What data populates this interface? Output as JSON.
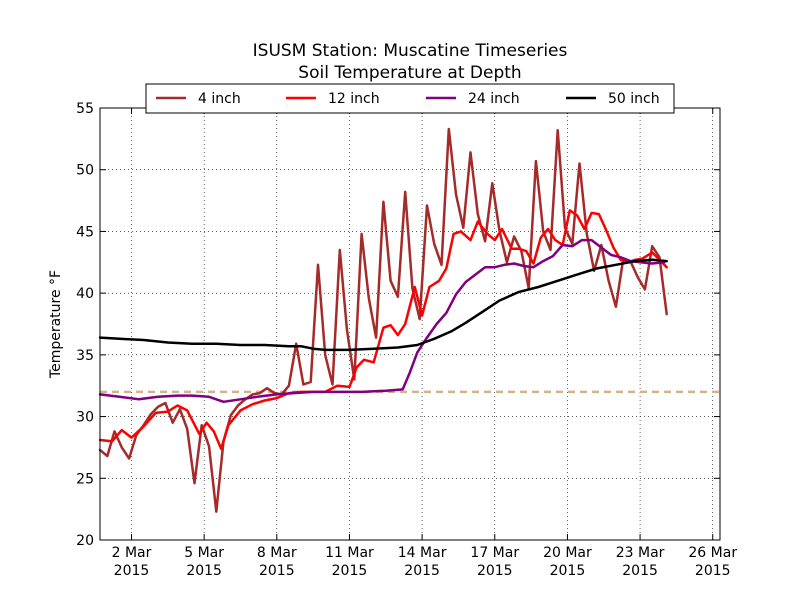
{
  "chart_data": {
    "type": "line",
    "title": "ISUSM Station: Muscatine Timeseries",
    "subtitle": "Soil Temperature at Depth",
    "xlabel": "",
    "ylabel": "Temperature °F",
    "ylim": [
      20,
      55
    ],
    "xlim": [
      0.7,
      26.3
    ],
    "grid": true,
    "legend_position": "top",
    "x_units": "day of March 2015",
    "yticks": [
      "20",
      "25",
      "30",
      "35",
      "40",
      "45",
      "50",
      "55"
    ],
    "xticks": [
      {
        "line1": "2 Mar",
        "line2": "2015",
        "day": 2
      },
      {
        "line1": "5 Mar",
        "line2": "2015",
        "day": 5
      },
      {
        "line1": "8 Mar",
        "line2": "2015",
        "day": 8
      },
      {
        "line1": "11 Mar",
        "line2": "2015",
        "day": 11
      },
      {
        "line1": "14 Mar",
        "line2": "2015",
        "day": 14
      },
      {
        "line1": "17 Mar",
        "line2": "2015",
        "day": 17
      },
      {
        "line1": "20 Mar",
        "line2": "2015",
        "day": 20
      },
      {
        "line1": "23 Mar",
        "line2": "2015",
        "day": 23
      },
      {
        "line1": "26 Mar",
        "line2": "2015",
        "day": 26
      }
    ],
    "reference_line": {
      "y": 32,
      "color": "#d2b48c",
      "style": "dashed"
    },
    "series": [
      {
        "name": "4 inch",
        "color": "#a52a2a",
        "points": [
          [
            0.7,
            27.3
          ],
          [
            1.0,
            26.8
          ],
          [
            1.3,
            28.8
          ],
          [
            1.6,
            27.5
          ],
          [
            1.9,
            26.6
          ],
          [
            2.2,
            28.5
          ],
          [
            2.5,
            29.3
          ],
          [
            2.8,
            30.2
          ],
          [
            3.1,
            30.8
          ],
          [
            3.4,
            31.1
          ],
          [
            3.7,
            29.5
          ],
          [
            4.0,
            30.6
          ],
          [
            4.3,
            29.0
          ],
          [
            4.6,
            24.6
          ],
          [
            4.9,
            29.3
          ],
          [
            5.2,
            27.6
          ],
          [
            5.5,
            22.3
          ],
          [
            5.8,
            28.0
          ],
          [
            6.1,
            30.1
          ],
          [
            6.4,
            30.9
          ],
          [
            6.7,
            31.4
          ],
          [
            7.0,
            31.8
          ],
          [
            7.3,
            31.9
          ],
          [
            7.6,
            32.3
          ],
          [
            7.9,
            31.9
          ],
          [
            8.2,
            31.8
          ],
          [
            8.5,
            32.5
          ],
          [
            8.8,
            35.9
          ],
          [
            9.1,
            32.6
          ],
          [
            9.4,
            32.8
          ],
          [
            9.7,
            42.3
          ],
          [
            10.0,
            35.0
          ],
          [
            10.3,
            32.6
          ],
          [
            10.6,
            43.5
          ],
          [
            10.9,
            37.0
          ],
          [
            11.2,
            33.0
          ],
          [
            11.5,
            44.8
          ],
          [
            11.8,
            39.6
          ],
          [
            12.1,
            36.4
          ],
          [
            12.4,
            47.4
          ],
          [
            12.7,
            41.0
          ],
          [
            13.0,
            39.7
          ],
          [
            13.3,
            48.2
          ],
          [
            13.6,
            40.4
          ],
          [
            13.9,
            37.9
          ],
          [
            14.2,
            47.1
          ],
          [
            14.5,
            44.0
          ],
          [
            14.8,
            42.3
          ],
          [
            15.1,
            53.3
          ],
          [
            15.4,
            48.0
          ],
          [
            15.7,
            45.3
          ],
          [
            16.0,
            51.4
          ],
          [
            16.3,
            46.4
          ],
          [
            16.6,
            44.2
          ],
          [
            16.9,
            48.9
          ],
          [
            17.2,
            45.0
          ],
          [
            17.5,
            42.5
          ],
          [
            17.8,
            44.6
          ],
          [
            18.1,
            43.4
          ],
          [
            18.4,
            40.4
          ],
          [
            18.7,
            50.7
          ],
          [
            19.0,
            45.0
          ],
          [
            19.3,
            43.5
          ],
          [
            19.6,
            53.2
          ],
          [
            19.9,
            45.3
          ],
          [
            20.2,
            44.0
          ],
          [
            20.5,
            50.5
          ],
          [
            20.8,
            44.8
          ],
          [
            21.1,
            41.8
          ],
          [
            21.4,
            43.9
          ],
          [
            21.7,
            41.0
          ],
          [
            22.0,
            38.9
          ],
          [
            22.3,
            42.7
          ],
          [
            22.6,
            42.6
          ],
          [
            22.9,
            41.3
          ],
          [
            23.2,
            40.3
          ],
          [
            23.5,
            43.8
          ],
          [
            23.8,
            42.9
          ],
          [
            24.1,
            38.3
          ]
        ]
      },
      {
        "name": "12 inch",
        "color": "#ff0000",
        "points": [
          [
            0.7,
            28.1
          ],
          [
            1.2,
            28.0
          ],
          [
            1.6,
            28.9
          ],
          [
            2.0,
            28.3
          ],
          [
            2.5,
            29.2
          ],
          [
            3.0,
            30.3
          ],
          [
            3.5,
            30.4
          ],
          [
            3.9,
            30.9
          ],
          [
            4.3,
            30.5
          ],
          [
            4.8,
            28.6
          ],
          [
            5.1,
            29.5
          ],
          [
            5.4,
            28.8
          ],
          [
            5.7,
            27.4
          ],
          [
            6.0,
            29.3
          ],
          [
            6.5,
            30.5
          ],
          [
            7.0,
            31.0
          ],
          [
            7.5,
            31.3
          ],
          [
            8.0,
            31.5
          ],
          [
            8.5,
            31.9
          ],
          [
            9.0,
            32.0
          ],
          [
            9.5,
            32.0
          ],
          [
            10.0,
            32.0
          ],
          [
            10.5,
            32.5
          ],
          [
            11.0,
            32.4
          ],
          [
            11.3,
            34.0
          ],
          [
            11.6,
            34.6
          ],
          [
            12.0,
            34.4
          ],
          [
            12.4,
            37.2
          ],
          [
            12.7,
            37.4
          ],
          [
            13.0,
            36.6
          ],
          [
            13.3,
            37.5
          ],
          [
            13.7,
            40.5
          ],
          [
            14.0,
            38.2
          ],
          [
            14.3,
            40.5
          ],
          [
            14.7,
            41.0
          ],
          [
            15.0,
            42.0
          ],
          [
            15.3,
            44.8
          ],
          [
            15.6,
            45.0
          ],
          [
            16.0,
            44.3
          ],
          [
            16.3,
            45.8
          ],
          [
            16.7,
            44.8
          ],
          [
            17.0,
            44.3
          ],
          [
            17.3,
            45.2
          ],
          [
            17.7,
            43.6
          ],
          [
            18.0,
            43.6
          ],
          [
            18.3,
            43.4
          ],
          [
            18.6,
            42.4
          ],
          [
            18.9,
            44.5
          ],
          [
            19.2,
            45.2
          ],
          [
            19.5,
            44.3
          ],
          [
            19.8,
            43.9
          ],
          [
            20.1,
            46.7
          ],
          [
            20.4,
            46.3
          ],
          [
            20.7,
            45.2
          ],
          [
            21.0,
            46.5
          ],
          [
            21.3,
            46.4
          ],
          [
            21.6,
            45.1
          ],
          [
            21.9,
            43.7
          ],
          [
            22.2,
            42.7
          ],
          [
            22.5,
            42.5
          ],
          [
            22.8,
            42.7
          ],
          [
            23.1,
            42.8
          ],
          [
            23.5,
            43.3
          ],
          [
            23.8,
            42.7
          ],
          [
            24.1,
            42.1
          ]
        ]
      },
      {
        "name": "24 inch",
        "color": "#800080",
        "points": [
          [
            0.7,
            31.8
          ],
          [
            1.5,
            31.6
          ],
          [
            2.3,
            31.4
          ],
          [
            3.1,
            31.6
          ],
          [
            3.9,
            31.7
          ],
          [
            4.5,
            31.7
          ],
          [
            5.2,
            31.6
          ],
          [
            5.8,
            31.2
          ],
          [
            6.5,
            31.4
          ],
          [
            7.2,
            31.6
          ],
          [
            8.0,
            31.8
          ],
          [
            8.7,
            31.9
          ],
          [
            9.5,
            32.0
          ],
          [
            10.5,
            32.0
          ],
          [
            11.5,
            32.0
          ],
          [
            12.5,
            32.1
          ],
          [
            13.2,
            32.2
          ],
          [
            13.5,
            33.6
          ],
          [
            13.8,
            35.2
          ],
          [
            14.2,
            36.4
          ],
          [
            14.6,
            37.5
          ],
          [
            15.0,
            38.4
          ],
          [
            15.4,
            39.9
          ],
          [
            15.8,
            40.9
          ],
          [
            16.2,
            41.5
          ],
          [
            16.6,
            42.1
          ],
          [
            17.0,
            42.1
          ],
          [
            17.4,
            42.3
          ],
          [
            17.8,
            42.4
          ],
          [
            18.2,
            42.2
          ],
          [
            18.6,
            42.1
          ],
          [
            19.0,
            42.6
          ],
          [
            19.4,
            43.0
          ],
          [
            19.8,
            43.9
          ],
          [
            20.2,
            43.8
          ],
          [
            20.6,
            44.3
          ],
          [
            21.0,
            44.3
          ],
          [
            21.4,
            43.7
          ],
          [
            21.8,
            43.1
          ],
          [
            22.2,
            42.9
          ],
          [
            22.6,
            42.6
          ],
          [
            23.0,
            42.5
          ],
          [
            23.5,
            42.4
          ],
          [
            24.0,
            42.5
          ]
        ]
      },
      {
        "name": "50 inch",
        "color": "#000000",
        "points": [
          [
            0.7,
            36.4
          ],
          [
            1.5,
            36.3
          ],
          [
            2.5,
            36.2
          ],
          [
            3.5,
            36.0
          ],
          [
            4.5,
            35.9
          ],
          [
            5.5,
            35.9
          ],
          [
            6.5,
            35.8
          ],
          [
            7.5,
            35.8
          ],
          [
            8.5,
            35.7
          ],
          [
            9.0,
            35.7
          ],
          [
            9.5,
            35.5
          ],
          [
            10.0,
            35.4
          ],
          [
            11.0,
            35.4
          ],
          [
            12.0,
            35.5
          ],
          [
            13.0,
            35.6
          ],
          [
            13.8,
            35.8
          ],
          [
            14.5,
            36.3
          ],
          [
            15.2,
            36.9
          ],
          [
            15.8,
            37.6
          ],
          [
            16.5,
            38.5
          ],
          [
            17.2,
            39.4
          ],
          [
            18.0,
            40.1
          ],
          [
            18.8,
            40.5
          ],
          [
            19.6,
            41.0
          ],
          [
            20.4,
            41.5
          ],
          [
            21.2,
            42.0
          ],
          [
            22.0,
            42.3
          ],
          [
            22.8,
            42.6
          ],
          [
            23.5,
            42.7
          ],
          [
            24.1,
            42.6
          ]
        ]
      }
    ]
  }
}
